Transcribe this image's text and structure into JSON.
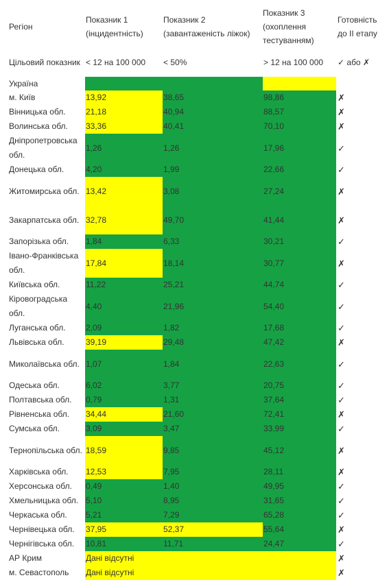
{
  "header": {
    "region": "Регіон",
    "ind1": "Показник 1 (інцидентність)",
    "ind2": "Показник 2 (завантаженість ліжок)",
    "ind3": "Показник 3 (охоплення тестуванням)",
    "ready": "Готовність до II етапу"
  },
  "target": {
    "label": "Цільовий показник",
    "ind1": "< 12 на 100 000",
    "ind2": "< 50%",
    "ind3": "> 12 на 100 000",
    "ready": "✓ або ✗"
  },
  "colors": {
    "green": "#16a244",
    "yellow": "#ffff00"
  },
  "rows": [
    {
      "region": "Україна",
      "v1": "",
      "v2": "",
      "v3": "",
      "mark": "",
      "c1": "g",
      "c2": "g",
      "c3": "y"
    },
    {
      "region": "м. Київ",
      "v1": "13,92",
      "v2": "38,65",
      "v3": "98,86",
      "mark": "✗",
      "c1": "y",
      "c2": "g",
      "c3": "g"
    },
    {
      "region": "Вінницька обл.",
      "v1": "21,18",
      "v2": "40,94",
      "v3": "88,57",
      "mark": "✗",
      "c1": "y",
      "c2": "g",
      "c3": "g"
    },
    {
      "region": "Волинська обл.",
      "v1": "33,36",
      "v2": "40,41",
      "v3": "70,10",
      "mark": "✗",
      "c1": "y",
      "c2": "g",
      "c3": "g"
    },
    {
      "region": "Дніпропетровська обл.",
      "v1": "1,26",
      "v2": "1,26",
      "v3": "17,96",
      "mark": "✓",
      "c1": "g",
      "c2": "g",
      "c3": "g"
    },
    {
      "region": "Донецька обл.",
      "v1": "4,20",
      "v2": "1,99",
      "v3": "22,66",
      "mark": "✓",
      "c1": "g",
      "c2": "g",
      "c3": "g"
    },
    {
      "region": "Житомирська обл.",
      "v1": "13,42",
      "v2": "3,08",
      "v3": "27,24",
      "mark": "✗",
      "c1": "y",
      "c2": "g",
      "c3": "g"
    },
    {
      "region": "Закарпатська обл.",
      "v1": "32,78",
      "v2": "49,70",
      "v3": "41,44",
      "mark": "✗",
      "c1": "y",
      "c2": "g",
      "c3": "g"
    },
    {
      "region": "Запорізька обл.",
      "v1": "1,84",
      "v2": "6,33",
      "v3": "30,21",
      "mark": "✓",
      "c1": "g",
      "c2": "g",
      "c3": "g"
    },
    {
      "region": "Івано-Франківська обл.",
      "v1": "17,84",
      "v2": "18,14",
      "v3": "30,77",
      "mark": "✗",
      "c1": "y",
      "c2": "g",
      "c3": "g"
    },
    {
      "region": "Київська обл.",
      "v1": "11,22",
      "v2": "25,21",
      "v3": "44,74",
      "mark": "✓",
      "c1": "g",
      "c2": "g",
      "c3": "g"
    },
    {
      "region": "Кіровоградська обл.",
      "v1": "4,40",
      "v2": "21,96",
      "v3": "54,40",
      "mark": "✓",
      "c1": "g",
      "c2": "g",
      "c3": "g"
    },
    {
      "region": "Луганська обл.",
      "v1": "2,09",
      "v2": "1,82",
      "v3": "17,68",
      "mark": "✓",
      "c1": "g",
      "c2": "g",
      "c3": "g"
    },
    {
      "region": "Львівська обл.",
      "v1": "39,19",
      "v2": "29,48",
      "v3": "47,42",
      "mark": "✗",
      "c1": "y",
      "c2": "g",
      "c3": "g"
    },
    {
      "region": "Миколаївська обл.",
      "v1": "1,07",
      "v2": "1,84",
      "v3": "22,63",
      "mark": "✓",
      "c1": "g",
      "c2": "g",
      "c3": "g"
    },
    {
      "region": "Одеська обл.",
      "v1": "6,02",
      "v2": "3,77",
      "v3": "20,75",
      "mark": "✓",
      "c1": "g",
      "c2": "g",
      "c3": "g"
    },
    {
      "region": "Полтавська обл.",
      "v1": "0,79",
      "v2": "1,31",
      "v3": "37,64",
      "mark": "✓",
      "c1": "g",
      "c2": "g",
      "c3": "g"
    },
    {
      "region": "Рівненська обл.",
      "v1": "34,44",
      "v2": "21,60",
      "v3": "72,41",
      "mark": "✗",
      "c1": "y",
      "c2": "g",
      "c3": "g"
    },
    {
      "region": "Сумська обл.",
      "v1": "3,09",
      "v2": "3,47",
      "v3": "33,99",
      "mark": "✓",
      "c1": "g",
      "c2": "g",
      "c3": "g"
    },
    {
      "region": "Тернопільська обл.",
      "v1": "18,59",
      "v2": "9,85",
      "v3": "45,12",
      "mark": "✗",
      "c1": "y",
      "c2": "g",
      "c3": "g"
    },
    {
      "region": "Харківська обл.",
      "v1": "12,53",
      "v2": "7,95",
      "v3": "28,11",
      "mark": "✗",
      "c1": "y",
      "c2": "g",
      "c3": "g"
    },
    {
      "region": "Херсонська обл.",
      "v1": "0,49",
      "v2": "1,40",
      "v3": "49,95",
      "mark": "✓",
      "c1": "g",
      "c2": "g",
      "c3": "g"
    },
    {
      "region": "Хмельницька обл.",
      "v1": "5,10",
      "v2": "8,95",
      "v3": "31,65",
      "mark": "✓",
      "c1": "g",
      "c2": "g",
      "c3": "g"
    },
    {
      "region": "Черкаська обл.",
      "v1": "5,21",
      "v2": "7,29",
      "v3": "65,28",
      "mark": "✓",
      "c1": "g",
      "c2": "g",
      "c3": "g"
    },
    {
      "region": "Чернівецька обл.",
      "v1": "37,95",
      "v2": "52,37",
      "v3": "55,64",
      "mark": "✗",
      "c1": "y",
      "c2": "y",
      "c3": "g"
    },
    {
      "region": "Чернігівська обл.",
      "v1": "10,81",
      "v2": "11,71",
      "v3": "24,47",
      "mark": "✓",
      "c1": "g",
      "c2": "g",
      "c3": "g"
    },
    {
      "region": "АР Крим",
      "missing": "Дані відсутні",
      "mark": "✗"
    },
    {
      "region": "м. Севастополь",
      "missing": "Дані відсутні",
      "mark": "✗"
    }
  ]
}
